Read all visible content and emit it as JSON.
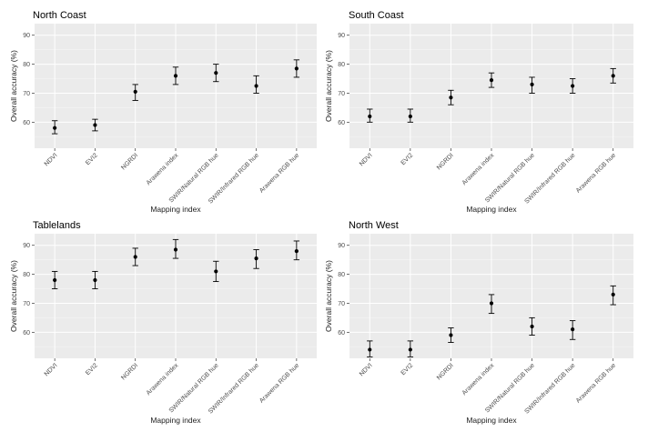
{
  "chart_data": [
    {
      "type": "scatter",
      "title": "North Coast",
      "xlabel": "Mapping index",
      "ylabel": "Overall accuracy (%)",
      "ylim": [
        51,
        94
      ],
      "yticks": [
        60,
        70,
        80,
        90
      ],
      "categories": [
        "NDVI",
        "EVI2",
        "NGRDI",
        "Arawena index",
        "SWIR/Natural RGB hue",
        "SWIR/Infrared RGB hue",
        "Arawena RGB hue"
      ],
      "values": [
        58,
        59,
        70.5,
        76,
        77,
        72.5,
        78.5
      ],
      "lower": [
        56,
        57,
        67.5,
        73,
        74,
        70,
        75.5
      ],
      "upper": [
        60.5,
        61,
        73,
        79,
        80,
        76,
        81.5
      ]
    },
    {
      "type": "scatter",
      "title": "South Coast",
      "xlabel": "Mapping index",
      "ylabel": "Overall accuracy (%)",
      "ylim": [
        51,
        94
      ],
      "yticks": [
        60,
        70,
        80,
        90
      ],
      "categories": [
        "NDVI",
        "EVI2",
        "NGRDI",
        "Arawena index",
        "SWIR/Natural RGB hue",
        "SWIR/Infrared RGB hue",
        "Arawena RGB hue"
      ],
      "values": [
        62,
        62,
        68.5,
        74.5,
        73,
        72.5,
        76
      ],
      "lower": [
        60,
        60,
        66,
        72,
        70,
        70,
        73.5
      ],
      "upper": [
        64.5,
        64.5,
        71,
        77,
        75.5,
        75,
        78.5
      ]
    },
    {
      "type": "scatter",
      "title": "Tablelands",
      "xlabel": "Mapping index",
      "ylabel": "Overall accuracy (%)",
      "ylim": [
        51,
        94
      ],
      "yticks": [
        60,
        70,
        80,
        90
      ],
      "categories": [
        "NDVI",
        "EVI2",
        "NGRDI",
        "Arawena index",
        "SWIR/Natural RGB hue",
        "SWIR/Infrared RGB hue",
        "Arawena RGB hue"
      ],
      "values": [
        78,
        78,
        86,
        88.5,
        81,
        85.5,
        88
      ],
      "lower": [
        75,
        75,
        83,
        85.5,
        77.5,
        82,
        85
      ],
      "upper": [
        81,
        81,
        89,
        92,
        84.5,
        88.5,
        91.5
      ]
    },
    {
      "type": "scatter",
      "title": "North West",
      "xlabel": "Mapping index",
      "ylabel": "Overall accuracy (%)",
      "ylim": [
        51,
        94
      ],
      "yticks": [
        60,
        70,
        80,
        90
      ],
      "categories": [
        "NDVI",
        "EVI2",
        "NGRDI",
        "Arawena index",
        "SWIR/Natural RGB hue",
        "SWIR/Infrared RGB hue",
        "Arawena RGB hue"
      ],
      "values": [
        54,
        54,
        59,
        70,
        62,
        61,
        73
      ],
      "lower": [
        51.5,
        51.5,
        56.5,
        66.5,
        59,
        57.5,
        69.5
      ],
      "upper": [
        57,
        57,
        61.5,
        73,
        65,
        64,
        76
      ]
    }
  ]
}
